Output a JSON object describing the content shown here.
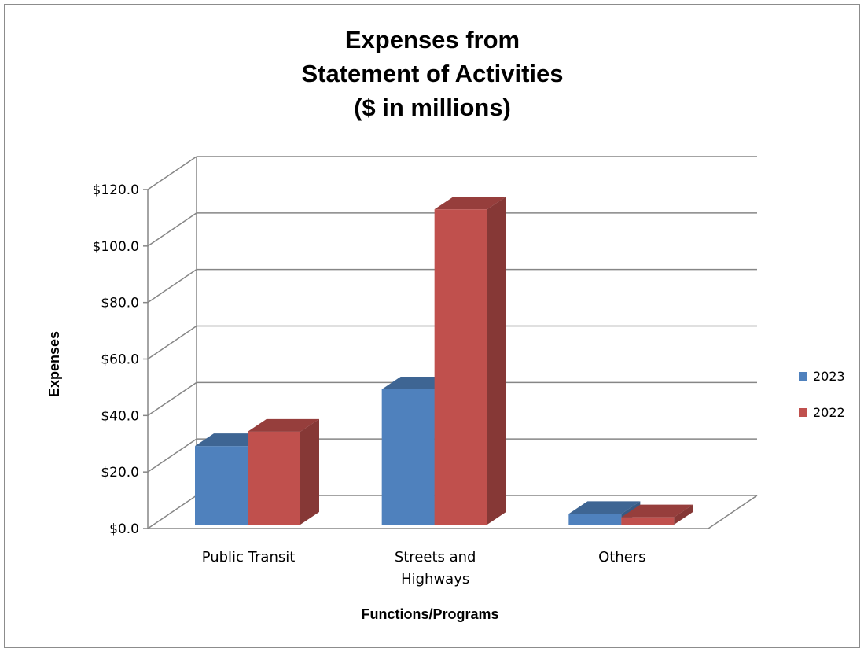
{
  "chart_data": {
    "type": "bar",
    "title": [
      "Expenses from",
      "Statement of Activities",
      "($ in millions)"
    ],
    "xlabel": "Functions/Programs",
    "ylabel": "Expenses",
    "categories": [
      [
        "Public Transit"
      ],
      [
        "Streets and",
        "Highways"
      ],
      [
        "Others"
      ]
    ],
    "series": [
      {
        "name": "2023",
        "values": [
          27.8,
          47.9,
          3.8
        ],
        "color": "#4f81bd"
      },
      {
        "name": "2022",
        "values": [
          32.9,
          111.6,
          2.6
        ],
        "color": "#c0504d"
      }
    ],
    "ylim": [
      0,
      120
    ],
    "yticks": [
      0,
      20,
      40,
      60,
      80,
      100,
      120
    ],
    "ytick_labels": [
      "$0.0",
      "$20.0",
      "$40.0",
      "$60.0",
      "$80.0",
      "$100.0",
      "$120.0"
    ],
    "grid": true,
    "legend_position": "right"
  }
}
